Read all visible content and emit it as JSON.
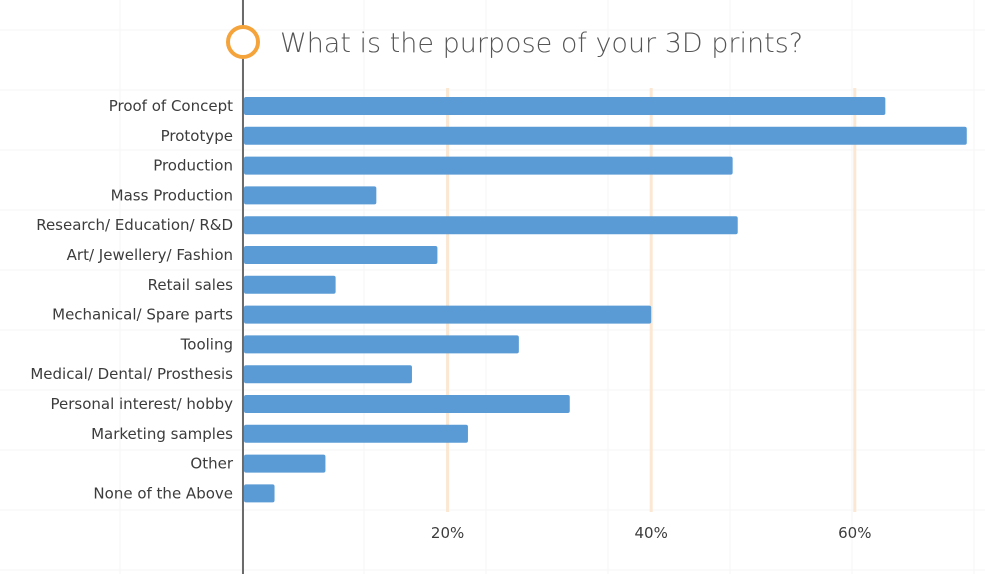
{
  "chart_data": {
    "type": "bar",
    "orientation": "horizontal",
    "title": "What is the purpose of your 3D prints?",
    "categories": [
      "Proof of Concept",
      "Prototype",
      "Production",
      "Mass Production",
      "Research/ Education/ R&D",
      "Art/ Jewellery/ Fashion",
      "Retail sales",
      "Mechanical/ Spare parts",
      "Tooling",
      "Medical/ Dental/ Prosthesis",
      "Personal interest/ hobby",
      "Marketing samples",
      "Other",
      "None of the Above"
    ],
    "values": [
      63,
      71,
      48,
      13,
      48.5,
      19,
      9,
      40,
      27,
      16.5,
      32,
      22,
      8,
      3
    ],
    "x_ticks": [
      20,
      40,
      60
    ],
    "x_tick_labels": [
      "20%",
      "40%",
      "60%"
    ],
    "xlim": [
      0,
      71
    ],
    "xlabel": "",
    "ylabel": "",
    "grid": true,
    "legend": "none",
    "colors": {
      "bar": "#5b9bd5",
      "axis": "#6b6b6b",
      "gridline": "#fbe7d2",
      "title_circle": "#f5a33b",
      "text": "#3c3c3c",
      "title_text": "#555555"
    }
  }
}
